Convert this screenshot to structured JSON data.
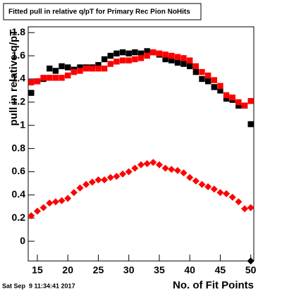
{
  "chart_data": {
    "type": "scatter",
    "title": "Fitted pull in relative q/pT for Primary Rec Pion NoHits",
    "y_label": "pull in relative q/pT",
    "x_label": "No. of Fit Points",
    "timestamp": "Sat Sep  9 11:34:41 2017",
    "x": [
      14,
      15,
      16,
      17,
      18,
      19,
      20,
      21,
      22,
      23,
      24,
      25,
      26,
      27,
      28,
      29,
      30,
      31,
      32,
      33,
      34,
      35,
      36,
      37,
      38,
      39,
      40,
      41,
      42,
      43,
      44,
      45,
      46,
      47,
      48,
      49,
      50
    ],
    "series": [
      {
        "color": "#000000",
        "marker": "square",
        "values": [
          1.28,
          1.38,
          1.4,
          1.49,
          1.47,
          1.51,
          1.5,
          1.48,
          1.5,
          1.5,
          1.5,
          1.52,
          1.57,
          1.6,
          1.62,
          1.63,
          1.62,
          1.63,
          1.62,
          1.64,
          1.63,
          1.61,
          1.57,
          1.56,
          1.54,
          1.53,
          1.51,
          1.46,
          1.4,
          1.38,
          1.33,
          1.3,
          1.23,
          1.22,
          1.17,
          1.17,
          1.01
        ]
      },
      {
        "color": "#ff0000",
        "marker": "square",
        "values": [
          1.37,
          1.38,
          1.41,
          1.41,
          1.41,
          1.41,
          1.43,
          1.46,
          1.47,
          1.49,
          1.49,
          1.49,
          1.49,
          1.53,
          1.55,
          1.56,
          1.56,
          1.57,
          1.58,
          1.6,
          1.63,
          1.62,
          1.61,
          1.6,
          1.59,
          1.58,
          1.56,
          1.51,
          1.46,
          1.43,
          1.39,
          1.34,
          1.26,
          1.24,
          1.2,
          1.17,
          1.21
        ]
      },
      {
        "color": "#ff0000",
        "marker": "diamond",
        "values": [
          0.22,
          0.26,
          0.29,
          0.33,
          0.34,
          0.35,
          0.37,
          0.42,
          0.46,
          0.49,
          0.51,
          0.53,
          0.53,
          0.55,
          0.56,
          0.58,
          0.6,
          0.63,
          0.66,
          0.67,
          0.68,
          0.66,
          0.63,
          0.62,
          0.61,
          0.59,
          0.55,
          0.52,
          0.49,
          0.47,
          0.45,
          0.42,
          0.41,
          0.38,
          0.34,
          0.28,
          0.29
        ]
      },
      {
        "color": "#000000",
        "marker": "diamond",
        "values": [
          null,
          null,
          null,
          null,
          null,
          null,
          null,
          null,
          null,
          null,
          null,
          null,
          null,
          null,
          null,
          null,
          null,
          null,
          null,
          null,
          null,
          null,
          null,
          null,
          null,
          null,
          null,
          null,
          null,
          null,
          null,
          null,
          null,
          null,
          null,
          null,
          -0.17
        ]
      }
    ],
    "xlim": [
      13.5,
      50.5
    ],
    "xticks": [
      15,
      20,
      25,
      30,
      35,
      40,
      45,
      50
    ],
    "ylim": [
      -0.17,
      1.85
    ],
    "yticks": [
      0,
      0.2,
      0.4,
      0.6,
      0.8,
      1,
      1.2,
      1.4,
      1.6,
      1.8
    ]
  }
}
